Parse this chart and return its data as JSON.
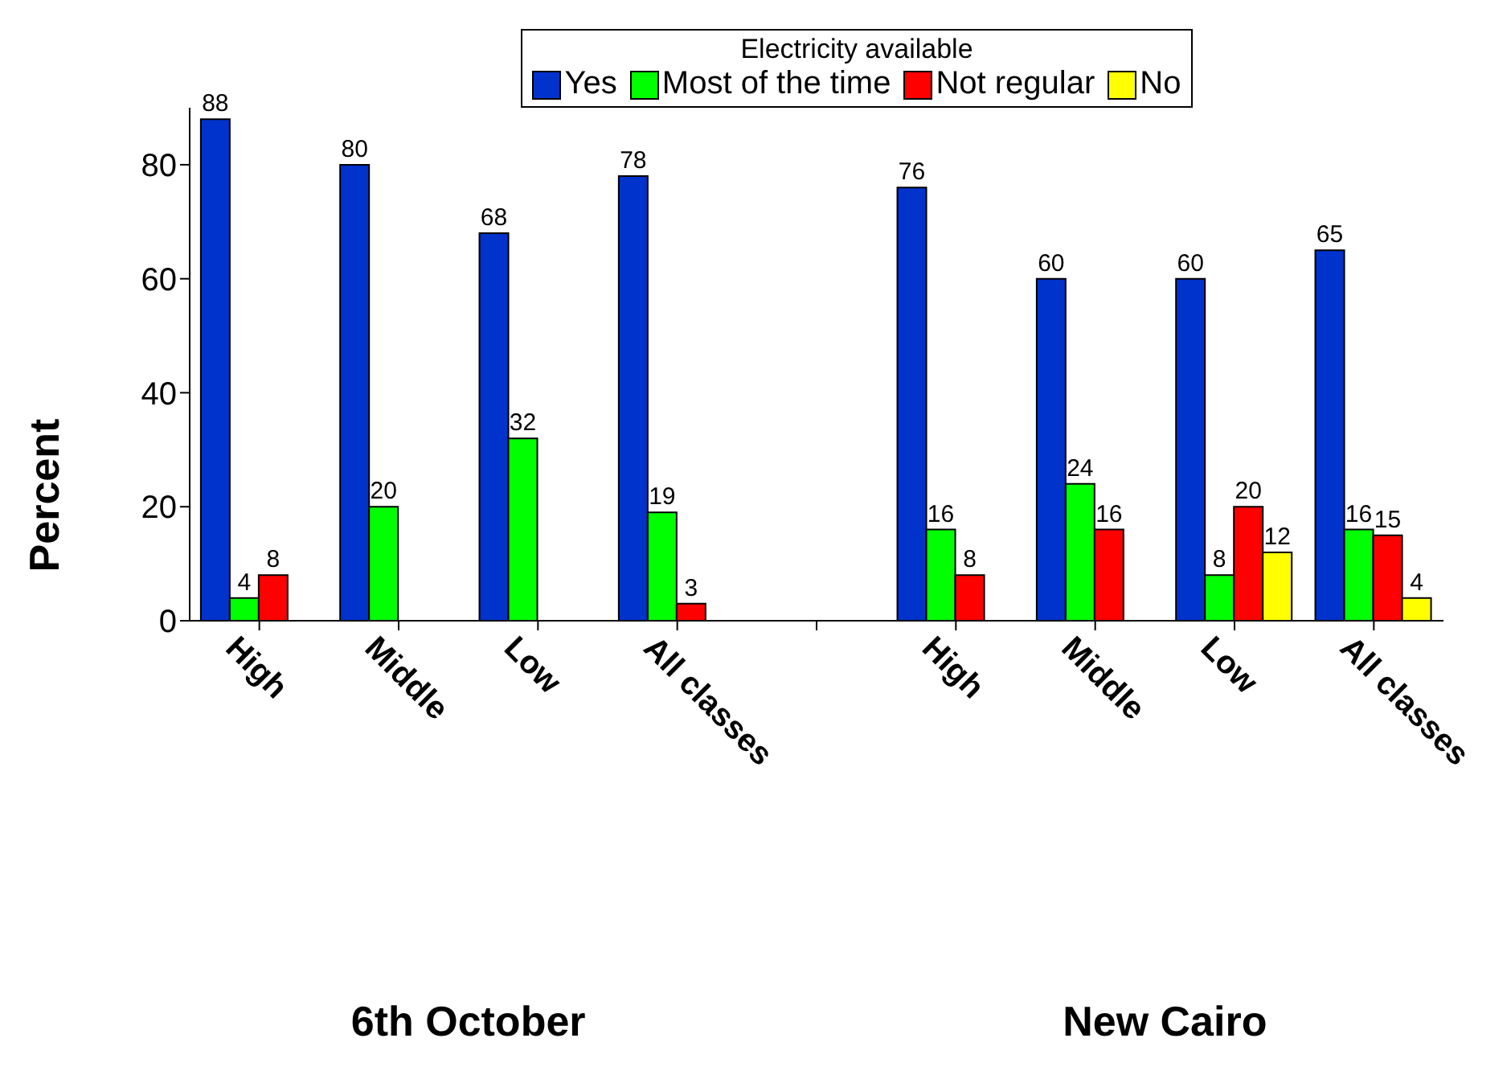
{
  "chart_data": {
    "type": "bar",
    "ylabel": "Percent",
    "legend_title": "Electricity available",
    "legend": "top",
    "categories": [
      "High",
      "Middle",
      "Low",
      "All classes",
      null,
      "High",
      "Middle",
      "Low",
      "All classes"
    ],
    "series": [
      {
        "name": "Yes",
        "color": "#0033cc",
        "values": [
          88,
          80,
          68,
          78,
          null,
          76,
          60,
          60,
          65
        ]
      },
      {
        "name": "Most of the time",
        "color": "#00ff00",
        "values": [
          4,
          20,
          32,
          19,
          null,
          16,
          24,
          8,
          16
        ]
      },
      {
        "name": "Not regular",
        "color": "#ff0000",
        "values": [
          8,
          null,
          null,
          3,
          null,
          8,
          16,
          20,
          15
        ]
      },
      {
        "name": "No",
        "color": "#ffff00",
        "values": [
          null,
          null,
          null,
          null,
          null,
          null,
          null,
          12,
          4
        ]
      }
    ],
    "ylim": [
      0,
      90
    ],
    "yticks": [
      0,
      20,
      40,
      60,
      80
    ],
    "grid": false,
    "data_labels": true,
    "annotations": [
      "6th October",
      "New Cairo"
    ]
  }
}
